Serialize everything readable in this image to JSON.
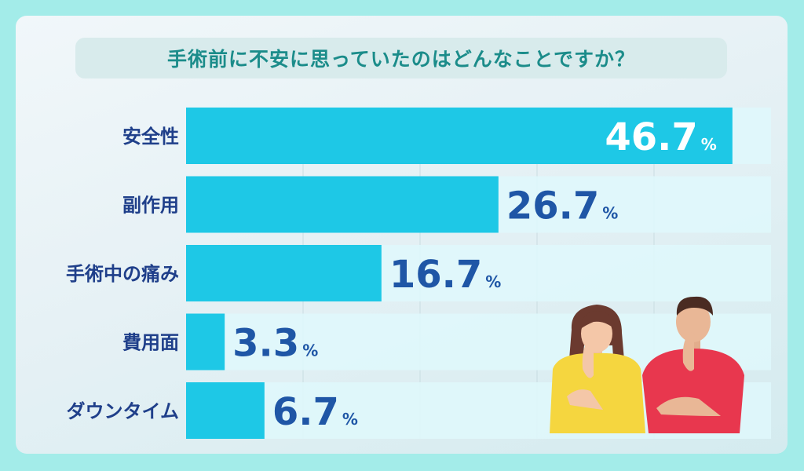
{
  "title": "手術前に不安に思っていたのはどんなことですか？",
  "colors": {
    "bar": "#1ec8e6",
    "track": "#dff8fc",
    "label": "#1f3f8a",
    "value_dark": "#1f56a6",
    "value_light": "#ffffff",
    "title": "#1b8c8a"
  },
  "chart_data": {
    "type": "bar",
    "orientation": "horizontal",
    "categories": [
      "安全性",
      "副作用",
      "手術中の痛み",
      "費用面",
      "ダウンタイム"
    ],
    "values": [
      46.7,
      26.7,
      16.7,
      3.3,
      6.7
    ],
    "value_labels": [
      "46.7",
      "26.7",
      "16.7",
      "3.3",
      "6.7"
    ],
    "unit": "%",
    "xlim": [
      0,
      50
    ],
    "grid": true,
    "legend": "none"
  },
  "illustration": {
    "woman_icon": "thinking-woman-icon",
    "man_icon": "thinking-man-icon"
  }
}
